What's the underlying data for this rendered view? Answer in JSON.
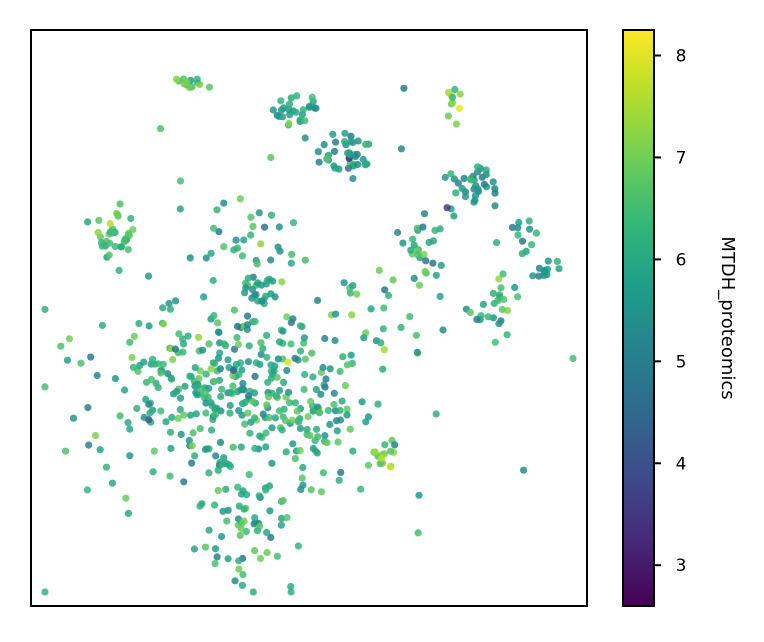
{
  "chart_data": {
    "type": "scatter",
    "title": "",
    "xlabel": "",
    "ylabel": "",
    "x_ticks": false,
    "y_ticks": false,
    "colorbar": {
      "label": "MTDH_proteomics",
      "colormap": "viridis",
      "range": [
        2.6,
        8.25
      ],
      "ticks": [
        3,
        4,
        5,
        6,
        7,
        8
      ],
      "tick_labels": [
        "3",
        "4",
        "5",
        "6",
        "7",
        "8"
      ],
      "colors": [
        "#440154",
        "#482878",
        "#3e4a89",
        "#31688e",
        "#26828e",
        "#1f9e89",
        "#35b779",
        "#6ece58",
        "#b5de2b",
        "#fde725"
      ]
    },
    "points_description": "embedding scatter of roughly 900 cells colored by MTDH_proteomics level; most values 5.5-7",
    "clusters": [
      {
        "cx": 0.27,
        "cy": 0.93,
        "sx": 0.015,
        "sy": 0.012,
        "n": 14,
        "mean": 6.6,
        "sd": 0.5
      },
      {
        "cx": 0.48,
        "cy": 0.88,
        "sx": 0.025,
        "sy": 0.015,
        "n": 26,
        "mean": 5.9,
        "sd": 0.4
      },
      {
        "cx": 0.57,
        "cy": 0.8,
        "sx": 0.03,
        "sy": 0.025,
        "n": 40,
        "mean": 5.6,
        "sd": 0.5
      },
      {
        "cx": 0.77,
        "cy": 0.89,
        "sx": 0.012,
        "sy": 0.025,
        "n": 10,
        "mean": 7.2,
        "sd": 0.6
      },
      {
        "cx": 0.81,
        "cy": 0.74,
        "sx": 0.03,
        "sy": 0.025,
        "n": 35,
        "mean": 5.7,
        "sd": 0.5
      },
      {
        "cx": 0.13,
        "cy": 0.65,
        "sx": 0.02,
        "sy": 0.025,
        "n": 32,
        "mean": 6.6,
        "sd": 0.4
      },
      {
        "cx": 0.9,
        "cy": 0.65,
        "sx": 0.018,
        "sy": 0.015,
        "n": 12,
        "mean": 5.7,
        "sd": 0.4
      },
      {
        "cx": 0.95,
        "cy": 0.58,
        "sx": 0.015,
        "sy": 0.01,
        "n": 12,
        "mean": 5.6,
        "sd": 0.4
      },
      {
        "cx": 0.86,
        "cy": 0.52,
        "sx": 0.03,
        "sy": 0.03,
        "n": 26,
        "mean": 6.3,
        "sd": 0.5
      },
      {
        "cx": 0.72,
        "cy": 0.66,
        "sx": 0.02,
        "sy": 0.05,
        "n": 22,
        "mean": 6.0,
        "sd": 0.6
      },
      {
        "cx": 0.4,
        "cy": 0.64,
        "sx": 0.05,
        "sy": 0.04,
        "n": 30,
        "mean": 5.8,
        "sd": 0.6
      },
      {
        "cx": 0.4,
        "cy": 0.55,
        "sx": 0.02,
        "sy": 0.02,
        "n": 24,
        "mean": 5.9,
        "sd": 0.5
      },
      {
        "cx": 0.6,
        "cy": 0.5,
        "sx": 0.05,
        "sy": 0.04,
        "n": 26,
        "mean": 6.4,
        "sd": 0.5
      },
      {
        "cx": 0.31,
        "cy": 0.36,
        "sx": 0.11,
        "sy": 0.09,
        "n": 260,
        "mean": 6.1,
        "sd": 0.5
      },
      {
        "cx": 0.52,
        "cy": 0.32,
        "sx": 0.05,
        "sy": 0.06,
        "n": 60,
        "mean": 6.2,
        "sd": 0.5
      },
      {
        "cx": 0.64,
        "cy": 0.25,
        "sx": 0.015,
        "sy": 0.012,
        "n": 16,
        "mean": 6.9,
        "sd": 0.4
      },
      {
        "cx": 0.38,
        "cy": 0.11,
        "sx": 0.06,
        "sy": 0.06,
        "n": 60,
        "mean": 6.3,
        "sd": 0.5
      },
      {
        "cx": 0.45,
        "cy": 0.4,
        "sx": 0.06,
        "sy": 0.06,
        "n": 40,
        "mean": 5.9,
        "sd": 0.6
      },
      {
        "cx": 0.5,
        "cy": 0.5,
        "sx": 0.25,
        "sy": 0.25,
        "n": 50,
        "mean": 6.0,
        "sd": 0.6
      }
    ]
  }
}
